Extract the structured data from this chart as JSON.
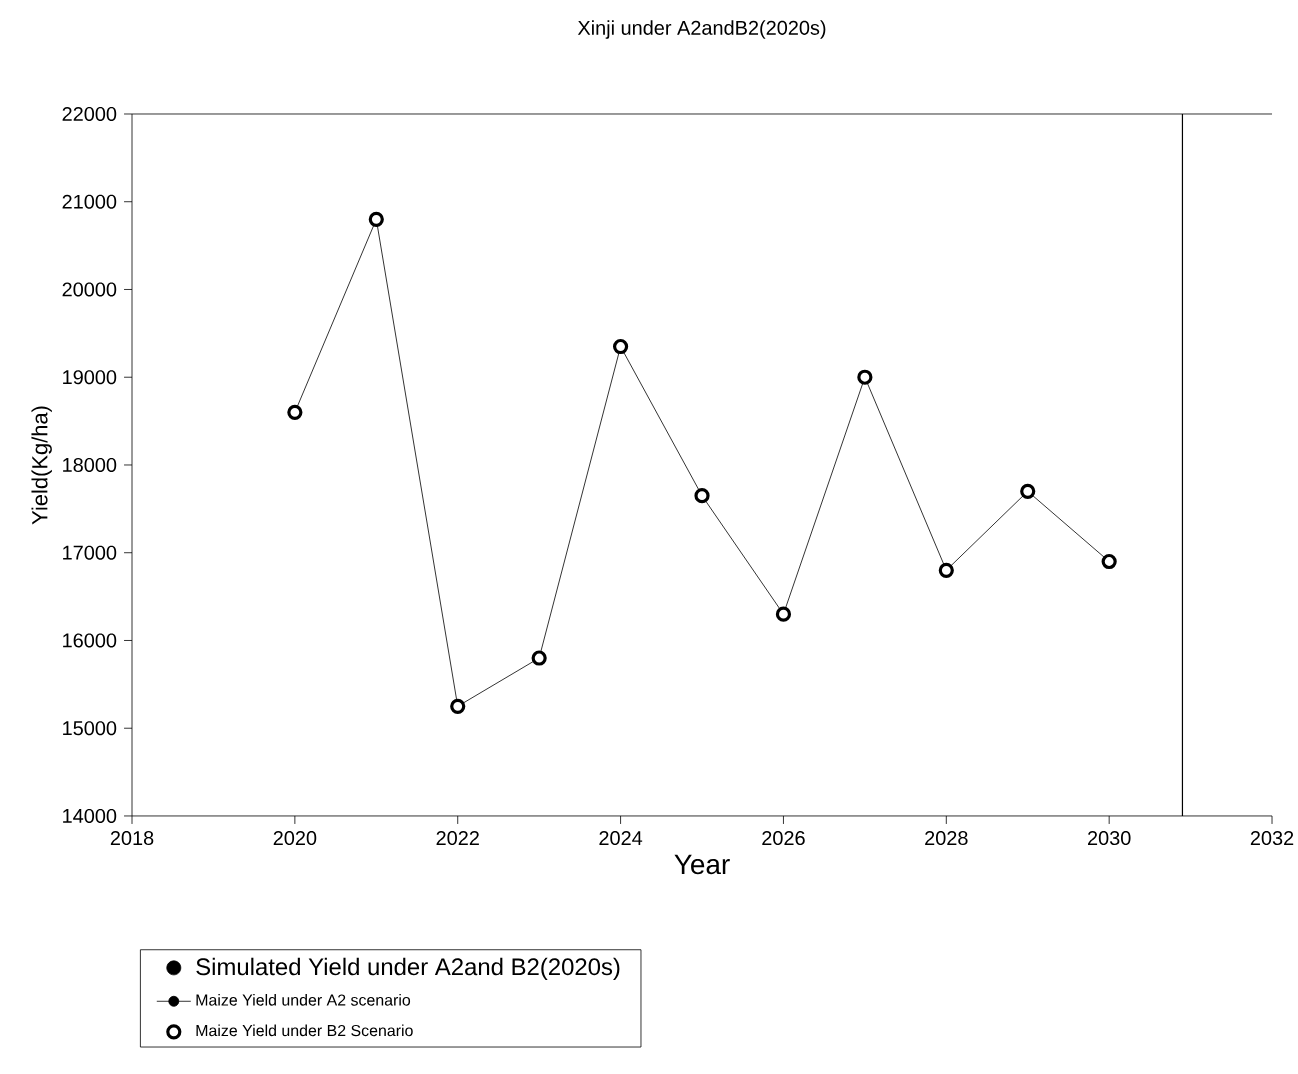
{
  "chart_data": {
    "type": "line",
    "title": "Xinji under A2andB2(2020s)",
    "xlabel": "Year",
    "ylabel": "Yield(Kg/ha)",
    "legend_title": "Simulated Yield under A2and B2(2020s)",
    "x": [
      2020,
      2021,
      2022,
      2023,
      2024,
      2025,
      2026,
      2027,
      2028,
      2029,
      2030
    ],
    "series": [
      {
        "name": "Maize Yield under A2 scenario",
        "color": "#000000",
        "values": [
          18600,
          20800,
          15250,
          15800,
          19350,
          17650,
          16300,
          19000,
          16800,
          17700,
          16900
        ]
      },
      {
        "name": "Maize Yield under B2 Scenario",
        "type": "scatter",
        "color": "#000000",
        "values": [
          18600,
          20800,
          15250,
          15800,
          19350,
          17650,
          16300,
          19000,
          16800,
          17700,
          16900
        ]
      }
    ],
    "marker": "circle",
    "xlim": [
      2018,
      2032
    ],
    "xticks": [
      2018,
      2020,
      2022,
      2024,
      2026,
      2028,
      2030,
      2032
    ],
    "ylim": [
      14000,
      22000
    ],
    "yticks": [
      14000,
      15000,
      16000,
      17000,
      18000,
      19000,
      20000,
      21000,
      22000
    ],
    "ref_lines": [
      {
        "axis": "x",
        "value": 2030.9
      }
    ],
    "grid": false,
    "legend": "bottom left"
  }
}
